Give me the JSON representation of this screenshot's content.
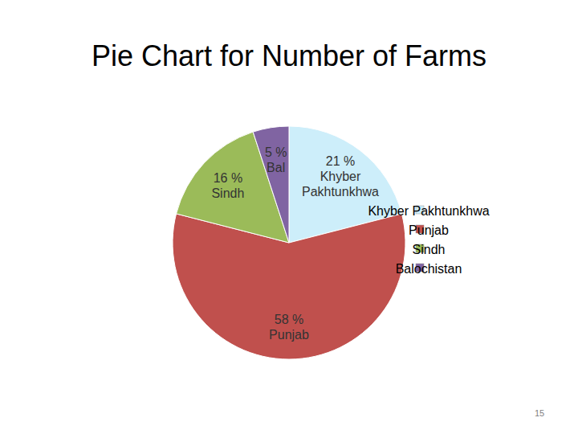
{
  "chart_data": {
    "type": "pie",
    "title": "Pie Chart for Number of Farms",
    "categories": [
      "Khyber Pakhtunkhwa",
      "Punjab",
      "Sindh",
      "Balochistan"
    ],
    "values": [
      21,
      58,
      16,
      5
    ],
    "value_labels": [
      "21 %",
      "58 %",
      "16 %",
      "5 %"
    ],
    "slice_labels": [
      "Khyber Pakhtunkhwa",
      "Punjab",
      "Sindh",
      "Bal"
    ],
    "colors": [
      "#cdeefa",
      "#c0504d",
      "#9bbb59",
      "#8064a2"
    ],
    "data_labels": true,
    "legend": "right",
    "page_number": "15"
  }
}
